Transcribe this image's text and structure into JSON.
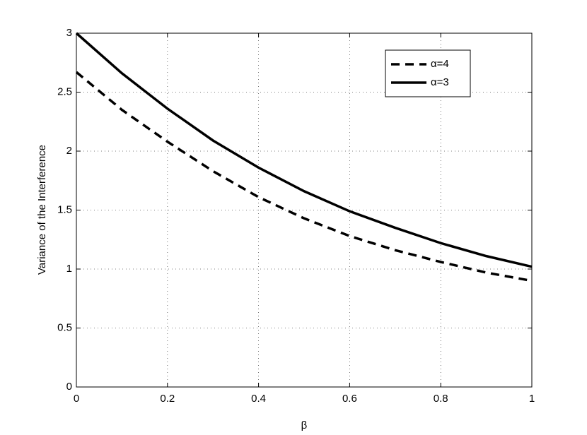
{
  "chart_data": {
    "type": "line",
    "xlabel": "β",
    "ylabel": "Variance of the Interference",
    "x": [
      0,
      0.1,
      0.2,
      0.3,
      0.4,
      0.5,
      0.6,
      0.7,
      0.8,
      0.9,
      1.0
    ],
    "series": [
      {
        "name": "α=4",
        "color": "#000000",
        "line_style": "dashed",
        "values": [
          2.67,
          2.35,
          2.08,
          1.83,
          1.61,
          1.43,
          1.28,
          1.16,
          1.06,
          0.97,
          0.9
        ]
      },
      {
        "name": "α=3",
        "color": "#000000",
        "line_style": "solid",
        "values": [
          3.0,
          2.66,
          2.36,
          2.09,
          1.86,
          1.66,
          1.49,
          1.35,
          1.22,
          1.11,
          1.02
        ]
      }
    ],
    "xlim": [
      0,
      1
    ],
    "xticks": [
      0,
      0.2,
      0.4,
      0.6,
      0.8,
      1
    ],
    "ylim": [
      0,
      3
    ],
    "yticks": [
      0,
      0.5,
      1,
      1.5,
      2,
      2.5,
      3
    ],
    "grid": true,
    "legend": "upper right"
  }
}
